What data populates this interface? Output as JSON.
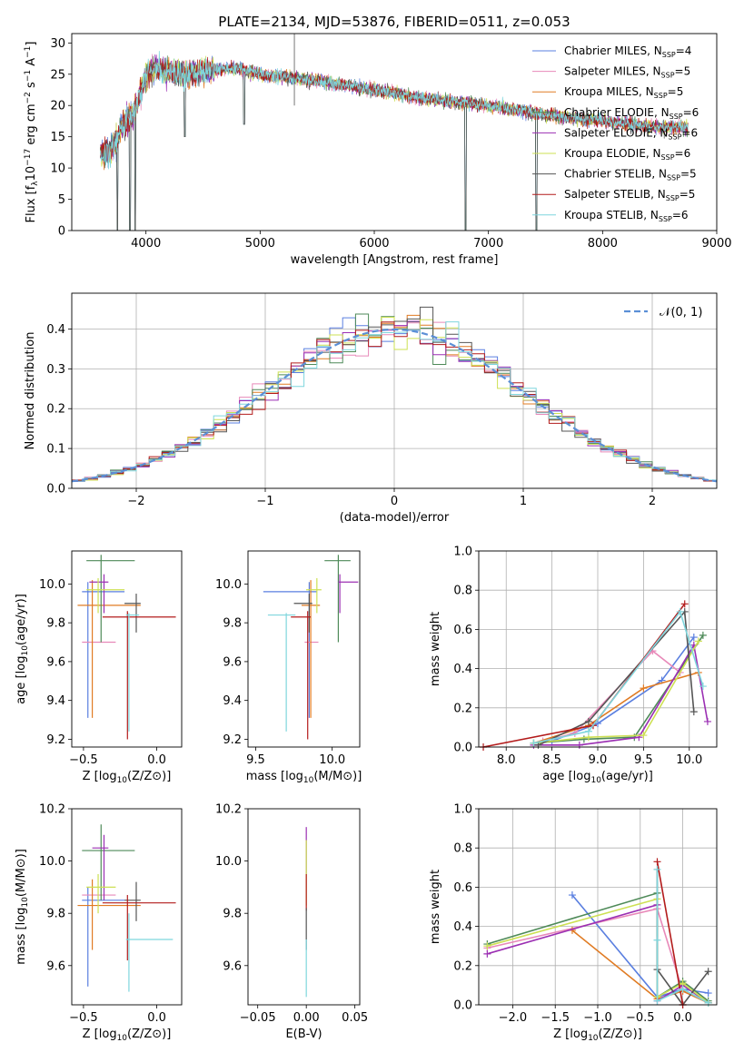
{
  "figure": {
    "title": "PLATE=2134, MJD=53876, FIBERID=0511, z=0.053"
  },
  "colors": {
    "Chabrier MILES": "#5a7fe0",
    "Salpeter MILES": "#e889b9",
    "Kroupa MILES": "#e07b23",
    "Chabrier ELODIE": "#4e8a58",
    "Salpeter ELODIE": "#9b2fb3",
    "Kroupa ELODIE": "#cde053",
    "Chabrier STELIB": "#555555",
    "Salpeter STELIB": "#b31b1b",
    "Kroupa STELIB": "#7fd6dd",
    "normal": "#5b8fd6"
  },
  "chart_data": [
    {
      "id": "spectrum",
      "type": "line",
      "xlabel": "wavelength [Angstrom, rest frame]",
      "ylabel": "Flux [f_λ 10^-17 erg cm^-2 s^-1 A^-1]",
      "xlim": [
        3350,
        9000
      ],
      "ylim": [
        0,
        31.5
      ],
      "xticks": [
        4000,
        5000,
        6000,
        7000,
        8000,
        9000
      ],
      "yticks": [
        0,
        5,
        10,
        15,
        20,
        25,
        30
      ],
      "legend_position": "top-right",
      "series": [
        {
          "name": "Chabrier MILES",
          "n_ssp": "4"
        },
        {
          "name": "Salpeter MILES",
          "n_ssp": "5"
        },
        {
          "name": "Kroupa MILES",
          "n_ssp": "5"
        },
        {
          "name": "Chabrier ELODIE",
          "n_ssp": "6"
        },
        {
          "name": "Salpeter ELODIE",
          "n_ssp": "6"
        },
        {
          "name": "Kroupa ELODIE",
          "n_ssp": "6"
        },
        {
          "name": "Chabrier STELIB",
          "n_ssp": "5"
        },
        {
          "name": "Salpeter STELIB",
          "n_ssp": "5"
        },
        {
          "name": "Kroupa STELIB",
          "n_ssp": "6"
        }
      ],
      "continuum_profile": [
        [
          3600,
          12
        ],
        [
          3700,
          13
        ],
        [
          3800,
          17
        ],
        [
          3900,
          19
        ],
        [
          4000,
          25
        ],
        [
          4100,
          26
        ],
        [
          4300,
          25
        ],
        [
          4500,
          25.5
        ],
        [
          4800,
          26
        ],
        [
          5000,
          25
        ],
        [
          5500,
          24
        ],
        [
          6000,
          22.5
        ],
        [
          6500,
          21
        ],
        [
          7000,
          20
        ],
        [
          7500,
          18.5
        ],
        [
          8000,
          17.5
        ],
        [
          8500,
          16.5
        ],
        [
          8750,
          16.5
        ]
      ],
      "absorption_features": [
        [
          3750,
          0
        ],
        [
          3860,
          0
        ],
        [
          3905,
          0
        ],
        [
          4340,
          15
        ],
        [
          4860,
          17
        ],
        [
          6800,
          0
        ],
        [
          7420,
          0
        ]
      ]
    },
    {
      "id": "residuals",
      "type": "histogram",
      "xlabel": "(data-model)/error",
      "ylabel": "Normed distribution",
      "xlim": [
        -2.5,
        2.5
      ],
      "ylim": [
        0,
        0.49
      ],
      "xticks": [
        -2,
        -1,
        0,
        1,
        2
      ],
      "yticks": [
        0.0,
        0.1,
        0.2,
        0.3,
        0.4
      ],
      "grid": true,
      "legend_position": "top-right",
      "reference_curve": {
        "label": "𝒩(0, 1)",
        "mean": 0,
        "sigma": 1
      },
      "bins": {
        "start": -2.5,
        "width": 0.1,
        "count": 50
      }
    },
    {
      "id": "age-vs-Z",
      "type": "errorbar",
      "xlabel": "Z [log10(Z/Z⊙)]",
      "ylabel": "age  [log10(age/yr)]",
      "xlim": [
        -0.58,
        0.17
      ],
      "ylim": [
        9.16,
        10.17
      ],
      "xticks": [
        -0.5,
        0.0
      ],
      "yticks": [
        9.2,
        9.4,
        9.6,
        9.8,
        10.0
      ],
      "points": [
        {
          "series": "Chabrier MILES",
          "x": -0.47,
          "xerr": [
            0.04,
            0.25
          ],
          "y": 9.96,
          "yerr": [
            0.65,
            0.05
          ]
        },
        {
          "series": "Salpeter MILES",
          "x": -0.36,
          "xerr": [
            0.15,
            0.08
          ],
          "y": 9.7,
          "yerr": [
            0.0,
            0.0
          ]
        },
        {
          "series": "Kroupa MILES",
          "x": -0.44,
          "xerr": [
            0.1,
            0.33
          ],
          "y": 9.89,
          "yerr": [
            0.58,
            0.13
          ]
        },
        {
          "series": "Chabrier ELODIE",
          "x": -0.38,
          "xerr": [
            0.1,
            0.23
          ],
          "y": 10.12,
          "yerr": [
            0.42,
            0.03
          ]
        },
        {
          "series": "Salpeter ELODIE",
          "x": -0.36,
          "xerr": [
            0.1,
            0.03
          ],
          "y": 10.01,
          "yerr": [
            0.16,
            0.04
          ]
        },
        {
          "series": "Kroupa ELODIE",
          "x": -0.4,
          "xerr": [
            0.08,
            0.18
          ],
          "y": 9.97,
          "yerr": [
            0.12,
            0.06
          ]
        },
        {
          "series": "Chabrier STELIB",
          "x": -0.14,
          "xerr": [
            0.08,
            0.03
          ],
          "y": 9.9,
          "yerr": [
            0.15,
            0.05
          ]
        },
        {
          "series": "Salpeter STELIB",
          "x": -0.2,
          "xerr": [
            0.17,
            0.33
          ],
          "y": 9.83,
          "yerr": [
            0.63,
            0.03
          ]
        },
        {
          "series": "Kroupa STELIB",
          "x": -0.19,
          "xerr": [
            0.02,
            0.07
          ],
          "y": 9.84,
          "yerr": [
            0.6,
            0.01
          ]
        }
      ]
    },
    {
      "id": "age-vs-mass",
      "type": "errorbar",
      "xlabel": "mass [log10(M/M⊙)]",
      "ylabel": "",
      "xlim": [
        9.45,
        10.18
      ],
      "ylim": [
        9.16,
        10.17
      ],
      "xticks": [
        9.5,
        10.0
      ],
      "yticks": [
        9.2,
        9.4,
        9.6,
        9.8,
        10.0
      ],
      "points": [
        {
          "series": "Chabrier MILES",
          "x": 9.85,
          "xerr": [
            0.3,
            0.05
          ],
          "y": 9.96,
          "yerr": [
            0.65,
            0.05
          ]
        },
        {
          "series": "Salpeter MILES",
          "x": 9.87,
          "xerr": [
            0.05,
            0.04
          ],
          "y": 9.7,
          "yerr": [
            0.0,
            0.0
          ]
        },
        {
          "series": "Kroupa MILES",
          "x": 9.86,
          "xerr": [
            0.06,
            0.06
          ],
          "y": 9.89,
          "yerr": [
            0.58,
            0.13
          ]
        },
        {
          "series": "Chabrier ELODIE",
          "x": 10.04,
          "xerr": [
            0.09,
            0.08
          ],
          "y": 10.12,
          "yerr": [
            0.42,
            0.03
          ]
        },
        {
          "series": "Salpeter ELODIE",
          "x": 10.05,
          "xerr": [
            0.01,
            0.12
          ],
          "y": 10.01,
          "yerr": [
            0.16,
            0.04
          ]
        },
        {
          "series": "Kroupa ELODIE",
          "x": 9.9,
          "xerr": [
            0.07,
            0.03
          ],
          "y": 9.97,
          "yerr": [
            0.12,
            0.06
          ]
        },
        {
          "series": "Chabrier STELIB",
          "x": 9.85,
          "xerr": [
            0.1,
            0.02
          ],
          "y": 9.9,
          "yerr": [
            0.15,
            0.05
          ]
        },
        {
          "series": "Salpeter STELIB",
          "x": 9.84,
          "xerr": [
            0.11,
            0.02
          ],
          "y": 9.83,
          "yerr": [
            0.63,
            0.03
          ]
        },
        {
          "series": "Kroupa STELIB",
          "x": 9.7,
          "xerr": [
            0.12,
            0.06
          ],
          "y": 9.84,
          "yerr": [
            0.6,
            0.01
          ]
        }
      ]
    },
    {
      "id": "weight-vs-age",
      "type": "line",
      "xlabel": "age  [log10(age/yr)]",
      "ylabel": "mass weight",
      "xlim": [
        7.7,
        10.3
      ],
      "ylim": [
        0,
        1.0
      ],
      "xticks": [
        8.0,
        8.5,
        9.0,
        9.5,
        10.0
      ],
      "yticks": [
        0.0,
        0.2,
        0.4,
        0.6,
        0.8,
        1.0
      ],
      "grid": true,
      "series": [
        {
          "name": "Chabrier MILES",
          "x": [
            8.5,
            9.0,
            9.7,
            10.05
          ],
          "y": [
            0.03,
            0.12,
            0.34,
            0.56
          ]
        },
        {
          "name": "Salpeter MILES",
          "x": [
            8.4,
            8.75,
            9.6,
            9.9
          ],
          "y": [
            0.03,
            0.07,
            0.49,
            0.38
          ]
        },
        {
          "name": "Kroupa MILES",
          "x": [
            8.3,
            8.9,
            9.5,
            10.1
          ],
          "y": [
            0.02,
            0.11,
            0.3,
            0.38
          ]
        },
        {
          "name": "Chabrier ELODIE",
          "x": [
            8.3,
            8.85,
            9.4,
            10.15
          ],
          "y": [
            0.02,
            0.04,
            0.05,
            0.57
          ]
        },
        {
          "name": "Salpeter ELODIE",
          "x": [
            8.3,
            8.8,
            9.45,
            10.05,
            10.2
          ],
          "y": [
            0.01,
            0.01,
            0.05,
            0.52,
            0.13
          ]
        },
        {
          "name": "Kroupa ELODIE",
          "x": [
            8.3,
            8.9,
            9.5,
            10.1
          ],
          "y": [
            0.02,
            0.05,
            0.06,
            0.54
          ]
        },
        {
          "name": "Chabrier STELIB",
          "x": [
            8.35,
            8.9,
            9.95,
            10.05
          ],
          "y": [
            0.01,
            0.13,
            0.69,
            0.18
          ]
        },
        {
          "name": "Salpeter STELIB",
          "x": [
            7.75,
            8.95,
            9.95
          ],
          "y": [
            0.0,
            0.11,
            0.73
          ]
        },
        {
          "name": "Kroupa STELIB",
          "x": [
            8.3,
            8.9,
            9.9,
            10.15
          ],
          "y": [
            0.02,
            0.08,
            0.69,
            0.31
          ]
        }
      ]
    },
    {
      "id": "mass-vs-Z",
      "type": "errorbar",
      "xlabel": "Z [log10(Z/Z⊙)]",
      "ylabel": "mass [log10(M/M⊙)]",
      "xlim": [
        -0.58,
        0.17
      ],
      "ylim": [
        9.45,
        10.2
      ],
      "xticks": [
        -0.5,
        0.0
      ],
      "yticks": [
        9.6,
        9.8,
        10.0,
        10.2
      ],
      "points": [
        {
          "series": "Chabrier MILES",
          "x": -0.47,
          "xerr": [
            0.04,
            0.25
          ],
          "y": 9.85,
          "yerr": [
            0.33,
            0.05
          ]
        },
        {
          "series": "Salpeter MILES",
          "x": -0.36,
          "xerr": [
            0.15,
            0.08
          ],
          "y": 9.87,
          "yerr": [
            0.0,
            0.0
          ]
        },
        {
          "series": "Kroupa MILES",
          "x": -0.44,
          "xerr": [
            0.1,
            0.33
          ],
          "y": 9.83,
          "yerr": [
            0.17,
            0.1
          ]
        },
        {
          "series": "Chabrier ELODIE",
          "x": -0.38,
          "xerr": [
            0.13,
            0.23
          ],
          "y": 10.04,
          "yerr": [
            0.19,
            0.1
          ]
        },
        {
          "series": "Salpeter ELODIE",
          "x": -0.36,
          "xerr": [
            0.08,
            0.03
          ],
          "y": 10.05,
          "yerr": [
            0.2,
            0.05
          ]
        },
        {
          "series": "Kroupa ELODIE",
          "x": -0.4,
          "xerr": [
            0.08,
            0.12
          ],
          "y": 9.9,
          "yerr": [
            0.1,
            0.05
          ]
        },
        {
          "series": "Chabrier STELIB",
          "x": -0.14,
          "xerr": [
            0.08,
            0.03
          ],
          "y": 9.85,
          "yerr": [
            0.08,
            0.07
          ]
        },
        {
          "series": "Salpeter STELIB",
          "x": -0.2,
          "xerr": [
            0.17,
            0.33
          ],
          "y": 9.84,
          "yerr": [
            0.22,
            0.03
          ]
        },
        {
          "series": "Kroupa STELIB",
          "x": -0.19,
          "xerr": [
            0.02,
            0.3
          ],
          "y": 9.7,
          "yerr": [
            0.2,
            0.1
          ]
        }
      ]
    },
    {
      "id": "mass-vs-ebv",
      "type": "errorbar",
      "xlabel": "E(B-V)",
      "ylabel": "",
      "xlim": [
        -0.06,
        0.055
      ],
      "ylim": [
        9.45,
        10.2
      ],
      "xticks": [
        -0.05,
        0.0,
        0.05
      ],
      "yticks": [
        9.6,
        9.8,
        10.0,
        10.2
      ],
      "points": [
        {
          "series": "Salpeter ELODIE",
          "x": 0.0,
          "xerr": [
            0,
            0
          ],
          "y": 10.05,
          "yerr": [
            0.1,
            0.08
          ]
        },
        {
          "series": "Kroupa ELODIE",
          "x": 0.0,
          "xerr": [
            0,
            0
          ],
          "y": 9.95,
          "yerr": [
            0.12,
            0.13
          ]
        },
        {
          "series": "Salpeter STELIB",
          "x": 0.0,
          "xerr": [
            0,
            0
          ],
          "y": 9.86,
          "yerr": [
            0.05,
            0.09
          ]
        },
        {
          "series": "Chabrier STELIB",
          "x": 0.0,
          "xerr": [
            0,
            0
          ],
          "y": 9.8,
          "yerr": [
            0.14,
            0.02
          ]
        },
        {
          "series": "Kroupa STELIB",
          "x": 0.0,
          "xerr": [
            0,
            0
          ],
          "y": 9.6,
          "yerr": [
            0.12,
            0.1
          ]
        }
      ]
    },
    {
      "id": "weight-vs-Z",
      "type": "line",
      "xlabel": "Z [log10(Z/Z⊙)]",
      "ylabel": "mass weight",
      "xlim": [
        -2.4,
        0.4
      ],
      "ylim": [
        0,
        1.0
      ],
      "xticks": [
        -2.0,
        -1.5,
        -1.0,
        -0.5,
        0.0
      ],
      "yticks": [
        0.0,
        0.2,
        0.4,
        0.6,
        0.8,
        1.0
      ],
      "grid": true,
      "series": [
        {
          "name": "Chabrier MILES",
          "x": [
            -1.3,
            -0.3,
            0.0,
            0.3
          ],
          "y": [
            0.56,
            0.04,
            0.08,
            0.06
          ]
        },
        {
          "name": "Salpeter MILES",
          "x": [
            -2.3,
            -0.3,
            0.0,
            0.3
          ],
          "y": [
            0.29,
            0.49,
            0.07,
            0.01
          ]
        },
        {
          "name": "Kroupa MILES",
          "x": [
            -1.3,
            -0.3,
            0.0,
            0.3
          ],
          "y": [
            0.38,
            0.03,
            0.07,
            0.01
          ]
        },
        {
          "name": "Chabrier ELODIE",
          "x": [
            -2.3,
            -0.3,
            -0.3,
            0.0,
            0.3
          ],
          "y": [
            0.31,
            0.57,
            0.04,
            0.12,
            0.02
          ]
        },
        {
          "name": "Salpeter ELODIE",
          "x": [
            -2.3,
            -0.3,
            -0.3,
            0.0,
            0.3
          ],
          "y": [
            0.26,
            0.51,
            0.02,
            0.1,
            0.01
          ]
        },
        {
          "name": "Kroupa ELODIE",
          "x": [
            -2.3,
            -0.3,
            -0.3,
            0.0,
            0.3
          ],
          "y": [
            0.3,
            0.54,
            0.04,
            0.11,
            0.01
          ]
        },
        {
          "name": "Chabrier STELIB",
          "x": [
            -0.3,
            -0.3,
            0.0,
            0.3
          ],
          "y": [
            0.69,
            0.18,
            0.0,
            0.17
          ]
        },
        {
          "name": "Salpeter STELIB",
          "x": [
            -0.3,
            0.0
          ],
          "y": [
            0.73,
            0.0
          ]
        },
        {
          "name": "Kroupa STELIB",
          "x": [
            -0.3,
            -0.3,
            -0.3,
            0.0,
            0.3
          ],
          "y": [
            0.69,
            0.33,
            0.02,
            0.08,
            0.01
          ]
        }
      ]
    }
  ]
}
